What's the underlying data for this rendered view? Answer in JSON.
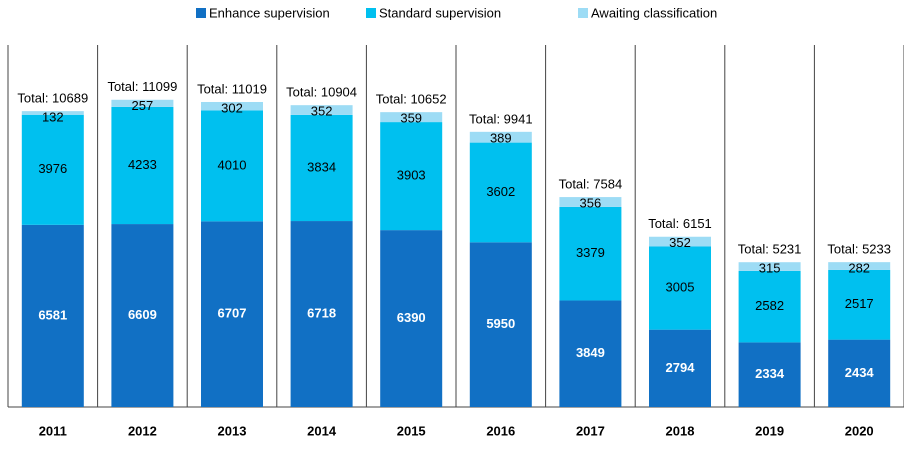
{
  "chart_data": {
    "type": "stacked_bar",
    "categories": [
      "2011",
      "2012",
      "2013",
      "2014",
      "2015",
      "2016",
      "2017",
      "2018",
      "2019",
      "2020"
    ],
    "series": [
      {
        "name": "Enhance supervision",
        "color": "#1170c4",
        "values": [
          6581,
          6609,
          6707,
          6718,
          6390,
          5950,
          3849,
          2794,
          2334,
          2434
        ]
      },
      {
        "name": "Standard supervision",
        "color": "#00c0ef",
        "values": [
          3976,
          4233,
          4010,
          3834,
          3903,
          3602,
          3379,
          3005,
          2582,
          2517
        ]
      },
      {
        "name": "Awaiting classification",
        "color": "#9ddcf5",
        "values": [
          132,
          257,
          302,
          352,
          359,
          389,
          356,
          352,
          315,
          282
        ]
      }
    ],
    "totals": {
      "values": [
        10689,
        11099,
        11019,
        10904,
        10652,
        9941,
        7584,
        6151,
        5231,
        5233
      ],
      "value_labels": [
        "Total: 10689",
        "Total: 11099",
        "Total: 11019",
        "Total: 10904",
        "Total: 10652",
        "Total: 9941",
        "Total: 7584",
        "Total: 6151",
        "Total: 5231",
        "Total: 5233"
      ]
    },
    "ylim": [
      0,
      12500
    ],
    "legend": "top"
  }
}
